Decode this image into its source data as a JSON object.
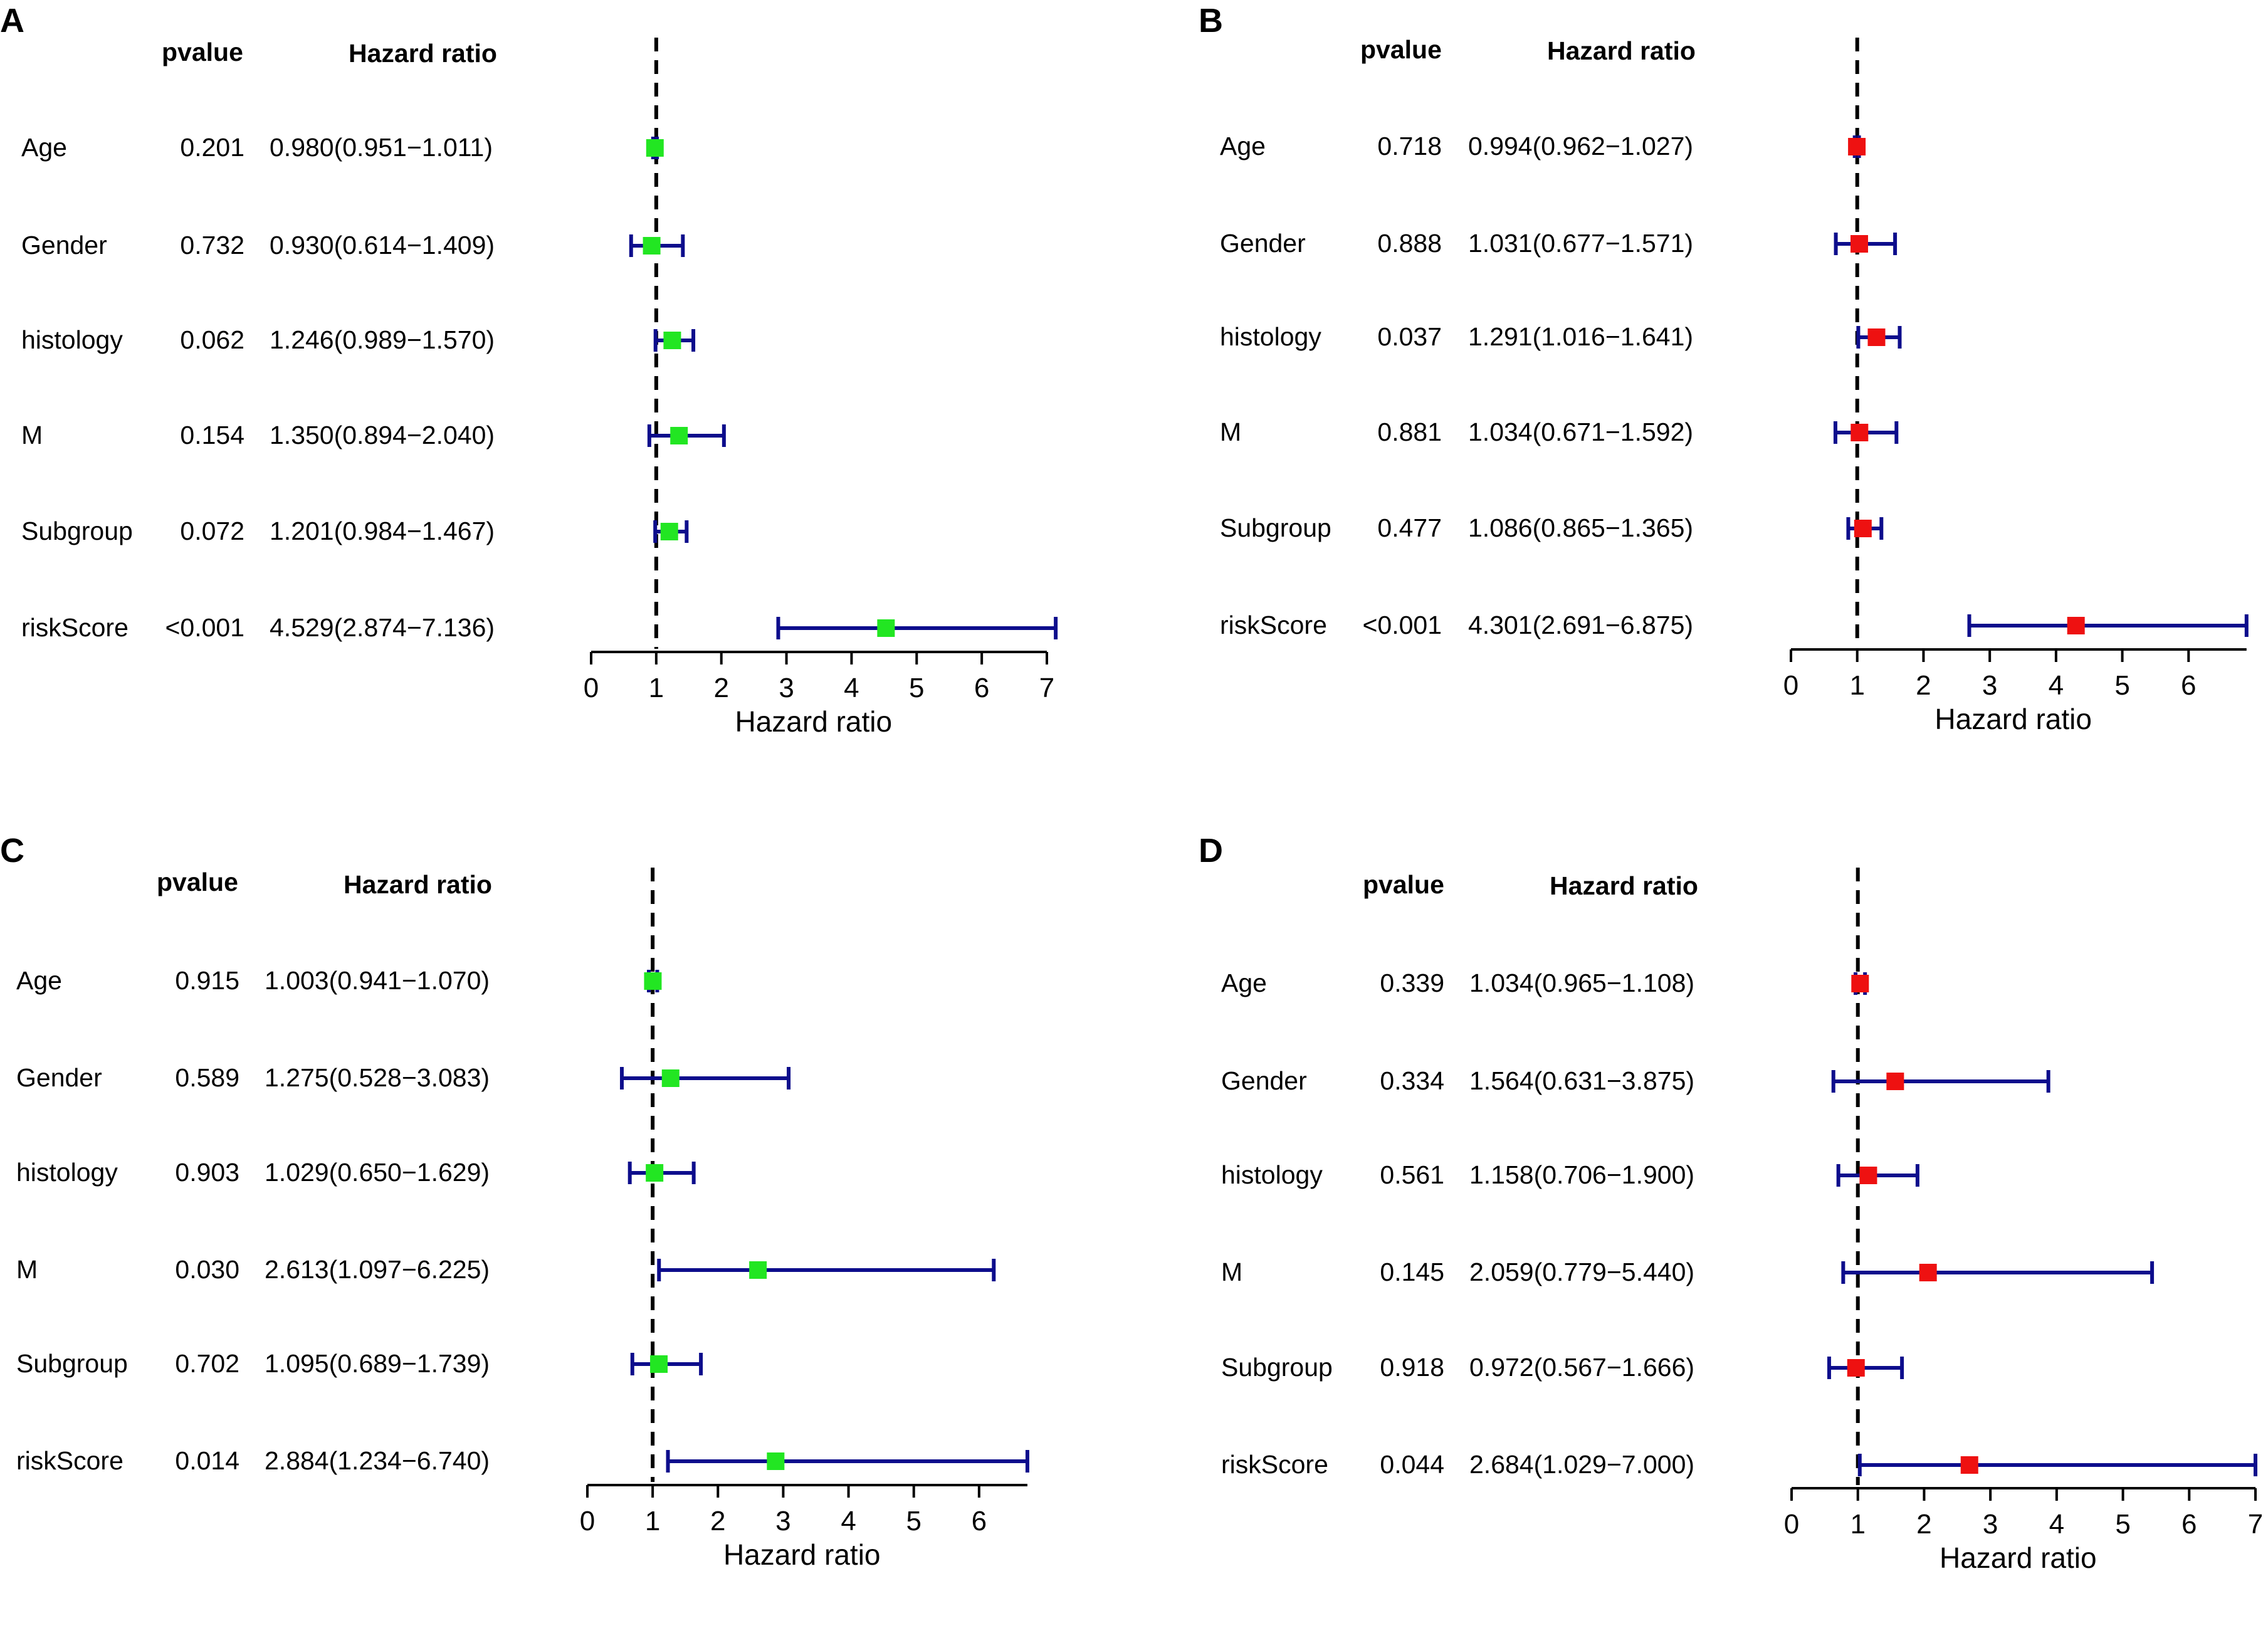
{
  "headers": {
    "pvalue": "pvalue",
    "hazard_ratio": "Hazard ratio"
  },
  "chart_data": [
    {
      "panel": "A",
      "type": "forest",
      "xlabel": "Hazard ratio",
      "xlim": [
        0,
        7
      ],
      "ticks": [
        0,
        1,
        2,
        3,
        4,
        5,
        6,
        7
      ],
      "ref_line": 1,
      "marker_color": "#22e622",
      "rows": [
        {
          "variable": "Age",
          "pvalue": "0.201",
          "hr_text": "0.980(0.951−1.011)",
          "hr": 0.98,
          "lo": 0.951,
          "hi": 1.011
        },
        {
          "variable": "Gender",
          "pvalue": "0.732",
          "hr_text": "0.930(0.614−1.409)",
          "hr": 0.93,
          "lo": 0.614,
          "hi": 1.409
        },
        {
          "variable": "histology",
          "pvalue": "0.062",
          "hr_text": "1.246(0.989−1.570)",
          "hr": 1.246,
          "lo": 0.989,
          "hi": 1.57
        },
        {
          "variable": "M",
          "pvalue": "0.154",
          "hr_text": "1.350(0.894−2.040)",
          "hr": 1.35,
          "lo": 0.894,
          "hi": 2.04
        },
        {
          "variable": "Subgroup",
          "pvalue": "0.072",
          "hr_text": "1.201(0.984−1.467)",
          "hr": 1.201,
          "lo": 0.984,
          "hi": 1.467
        },
        {
          "variable": "riskScore",
          "pvalue": "<0.001",
          "hr_text": "4.529(2.874−7.136)",
          "hr": 4.529,
          "lo": 2.874,
          "hi": 7.136
        }
      ]
    },
    {
      "panel": "B",
      "type": "forest",
      "xlabel": "Hazard ratio",
      "xlim": [
        0,
        6.875
      ],
      "ticks": [
        0,
        1,
        2,
        3,
        4,
        5,
        6
      ],
      "ref_line": 1,
      "marker_color": "#ee1111",
      "rows": [
        {
          "variable": "Age",
          "pvalue": "0.718",
          "hr_text": "0.994(0.962−1.027)",
          "hr": 0.994,
          "lo": 0.962,
          "hi": 1.027
        },
        {
          "variable": "Gender",
          "pvalue": "0.888",
          "hr_text": "1.031(0.677−1.571)",
          "hr": 1.031,
          "lo": 0.677,
          "hi": 1.571
        },
        {
          "variable": "histology",
          "pvalue": "0.037",
          "hr_text": "1.291(1.016−1.641)",
          "hr": 1.291,
          "lo": 1.016,
          "hi": 1.641
        },
        {
          "variable": "M",
          "pvalue": "0.881",
          "hr_text": "1.034(0.671−1.592)",
          "hr": 1.034,
          "lo": 0.671,
          "hi": 1.592
        },
        {
          "variable": "Subgroup",
          "pvalue": "0.477",
          "hr_text": "1.086(0.865−1.365)",
          "hr": 1.086,
          "lo": 0.865,
          "hi": 1.365
        },
        {
          "variable": "riskScore",
          "pvalue": "<0.001",
          "hr_text": "4.301(2.691−6.875)",
          "hr": 4.301,
          "lo": 2.691,
          "hi": 6.875
        }
      ]
    },
    {
      "panel": "C",
      "type": "forest",
      "xlabel": "Hazard ratio",
      "xlim": [
        0,
        6.74
      ],
      "ticks": [
        0,
        1,
        2,
        3,
        4,
        5,
        6
      ],
      "ref_line": 1,
      "marker_color": "#22e622",
      "rows": [
        {
          "variable": "Age",
          "pvalue": "0.915",
          "hr_text": "1.003(0.941−1.070)",
          "hr": 1.003,
          "lo": 0.941,
          "hi": 1.07
        },
        {
          "variable": "Gender",
          "pvalue": "0.589",
          "hr_text": "1.275(0.528−3.083)",
          "hr": 1.275,
          "lo": 0.528,
          "hi": 3.083
        },
        {
          "variable": "histology",
          "pvalue": "0.903",
          "hr_text": "1.029(0.650−1.629)",
          "hr": 1.029,
          "lo": 0.65,
          "hi": 1.629
        },
        {
          "variable": "M",
          "pvalue": "0.030",
          "hr_text": "2.613(1.097−6.225)",
          "hr": 2.613,
          "lo": 1.097,
          "hi": 6.225
        },
        {
          "variable": "Subgroup",
          "pvalue": "0.702",
          "hr_text": "1.095(0.689−1.739)",
          "hr": 1.095,
          "lo": 0.689,
          "hi": 1.739
        },
        {
          "variable": "riskScore",
          "pvalue": "0.014",
          "hr_text": "2.884(1.234−6.740)",
          "hr": 2.884,
          "lo": 1.234,
          "hi": 6.74
        }
      ]
    },
    {
      "panel": "D",
      "type": "forest",
      "xlabel": "Hazard ratio",
      "xlim": [
        0,
        7
      ],
      "ticks": [
        0,
        1,
        2,
        3,
        4,
        5,
        6,
        7
      ],
      "ref_line": 1,
      "marker_color": "#ee1111",
      "rows": [
        {
          "variable": "Age",
          "pvalue": "0.339",
          "hr_text": "1.034(0.965−1.108)",
          "hr": 1.034,
          "lo": 0.965,
          "hi": 1.108
        },
        {
          "variable": "Gender",
          "pvalue": "0.334",
          "hr_text": "1.564(0.631−3.875)",
          "hr": 1.564,
          "lo": 0.631,
          "hi": 3.875
        },
        {
          "variable": "histology",
          "pvalue": "0.561",
          "hr_text": "1.158(0.706−1.900)",
          "hr": 1.158,
          "lo": 0.706,
          "hi": 1.9
        },
        {
          "variable": "M",
          "pvalue": "0.145",
          "hr_text": "2.059(0.779−5.440)",
          "hr": 2.059,
          "lo": 0.779,
          "hi": 5.44
        },
        {
          "variable": "Subgroup",
          "pvalue": "0.918",
          "hr_text": "0.972(0.567−1.666)",
          "hr": 0.972,
          "lo": 0.567,
          "hi": 1.666
        },
        {
          "variable": "riskScore",
          "pvalue": "0.044",
          "hr_text": "2.684(1.029−7.000)",
          "hr": 2.684,
          "lo": 1.029,
          "hi": 7.0
        }
      ]
    }
  ]
}
